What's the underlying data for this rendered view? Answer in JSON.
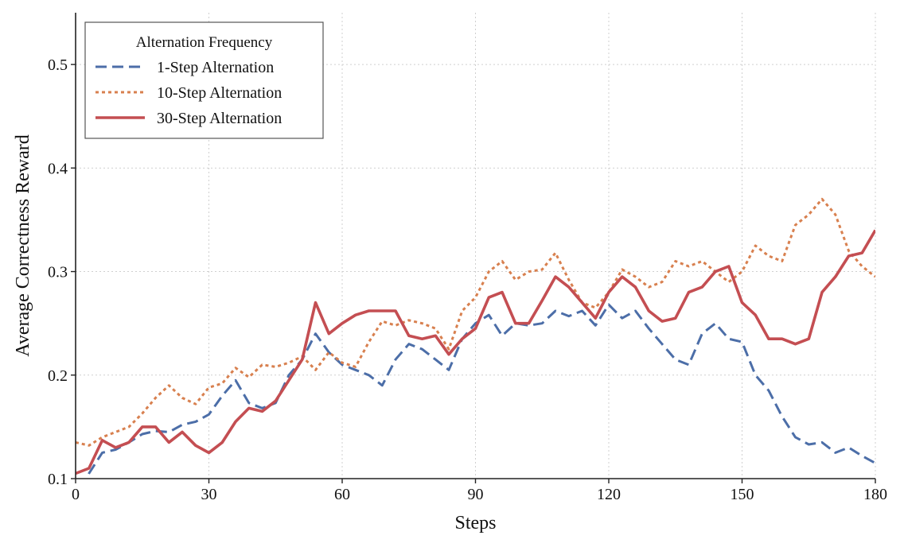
{
  "chart_data": {
    "type": "line",
    "title": "",
    "xlabel": "Steps",
    "ylabel": "Average Correctness Reward",
    "xlim": [
      0,
      180
    ],
    "ylim": [
      0.1,
      0.55
    ],
    "xticks": [
      0,
      30,
      60,
      90,
      120,
      150,
      180
    ],
    "yticks": [
      0.1,
      0.2,
      0.3,
      0.4,
      0.5
    ],
    "grid": true,
    "legend": {
      "title": "Alternation Frequency",
      "position": "top-left"
    },
    "x": [
      0,
      3,
      6,
      9,
      12,
      15,
      18,
      21,
      24,
      27,
      30,
      33,
      36,
      39,
      42,
      45,
      48,
      51,
      54,
      57,
      60,
      63,
      66,
      69,
      72,
      75,
      78,
      81,
      84,
      87,
      90,
      93,
      96,
      99,
      102,
      105,
      108,
      111,
      114,
      117,
      120,
      123,
      126,
      129,
      132,
      135,
      138,
      141,
      144,
      147,
      150,
      153,
      156,
      159,
      162,
      165,
      168,
      171,
      174,
      177,
      180
    ],
    "series": [
      {
        "name": "1-Step Alternation",
        "color": "#4c6ea8",
        "dash": "dashed",
        "values": [
          0.075,
          0.105,
          0.125,
          0.128,
          0.135,
          0.143,
          0.146,
          0.145,
          0.152,
          0.155,
          0.162,
          0.18,
          0.195,
          0.173,
          0.168,
          0.173,
          0.2,
          0.215,
          0.24,
          0.222,
          0.21,
          0.205,
          0.2,
          0.19,
          0.215,
          0.23,
          0.225,
          0.215,
          0.205,
          0.235,
          0.25,
          0.258,
          0.238,
          0.25,
          0.248,
          0.25,
          0.262,
          0.257,
          0.262,
          0.248,
          0.268,
          0.255,
          0.262,
          0.245,
          0.23,
          0.215,
          0.21,
          0.24,
          0.25,
          0.235,
          0.232,
          0.2,
          0.185,
          0.16,
          0.14,
          0.133,
          0.135,
          0.125,
          0.13,
          0.122,
          0.115
        ]
      },
      {
        "name": "10-Step Alternation",
        "color": "#d8804f",
        "dash": "dotted",
        "values": [
          0.135,
          0.132,
          0.14,
          0.145,
          0.15,
          0.163,
          0.178,
          0.19,
          0.178,
          0.172,
          0.188,
          0.192,
          0.207,
          0.198,
          0.21,
          0.208,
          0.212,
          0.218,
          0.205,
          0.222,
          0.212,
          0.208,
          0.232,
          0.252,
          0.248,
          0.253,
          0.25,
          0.245,
          0.225,
          0.262,
          0.275,
          0.3,
          0.31,
          0.292,
          0.3,
          0.302,
          0.318,
          0.292,
          0.27,
          0.265,
          0.28,
          0.302,
          0.295,
          0.285,
          0.29,
          0.31,
          0.305,
          0.31,
          0.3,
          0.29,
          0.3,
          0.325,
          0.315,
          0.31,
          0.345,
          0.355,
          0.37,
          0.355,
          0.32,
          0.305,
          0.295
        ]
      },
      {
        "name": "30-Step Alternation",
        "color": "#c44e52",
        "dash": "solid",
        "values": [
          0.105,
          0.11,
          0.137,
          0.13,
          0.135,
          0.15,
          0.15,
          0.135,
          0.145,
          0.132,
          0.125,
          0.135,
          0.155,
          0.168,
          0.165,
          0.175,
          0.195,
          0.215,
          0.27,
          0.24,
          0.25,
          0.258,
          0.262,
          0.262,
          0.262,
          0.238,
          0.235,
          0.238,
          0.22,
          0.235,
          0.245,
          0.275,
          0.28,
          0.25,
          0.25,
          0.272,
          0.295,
          0.285,
          0.27,
          0.255,
          0.28,
          0.295,
          0.285,
          0.262,
          0.252,
          0.255,
          0.28,
          0.285,
          0.3,
          0.305,
          0.27,
          0.258,
          0.235,
          0.235,
          0.23,
          0.235,
          0.28,
          0.295,
          0.315,
          0.318,
          0.34
        ]
      }
    ]
  }
}
